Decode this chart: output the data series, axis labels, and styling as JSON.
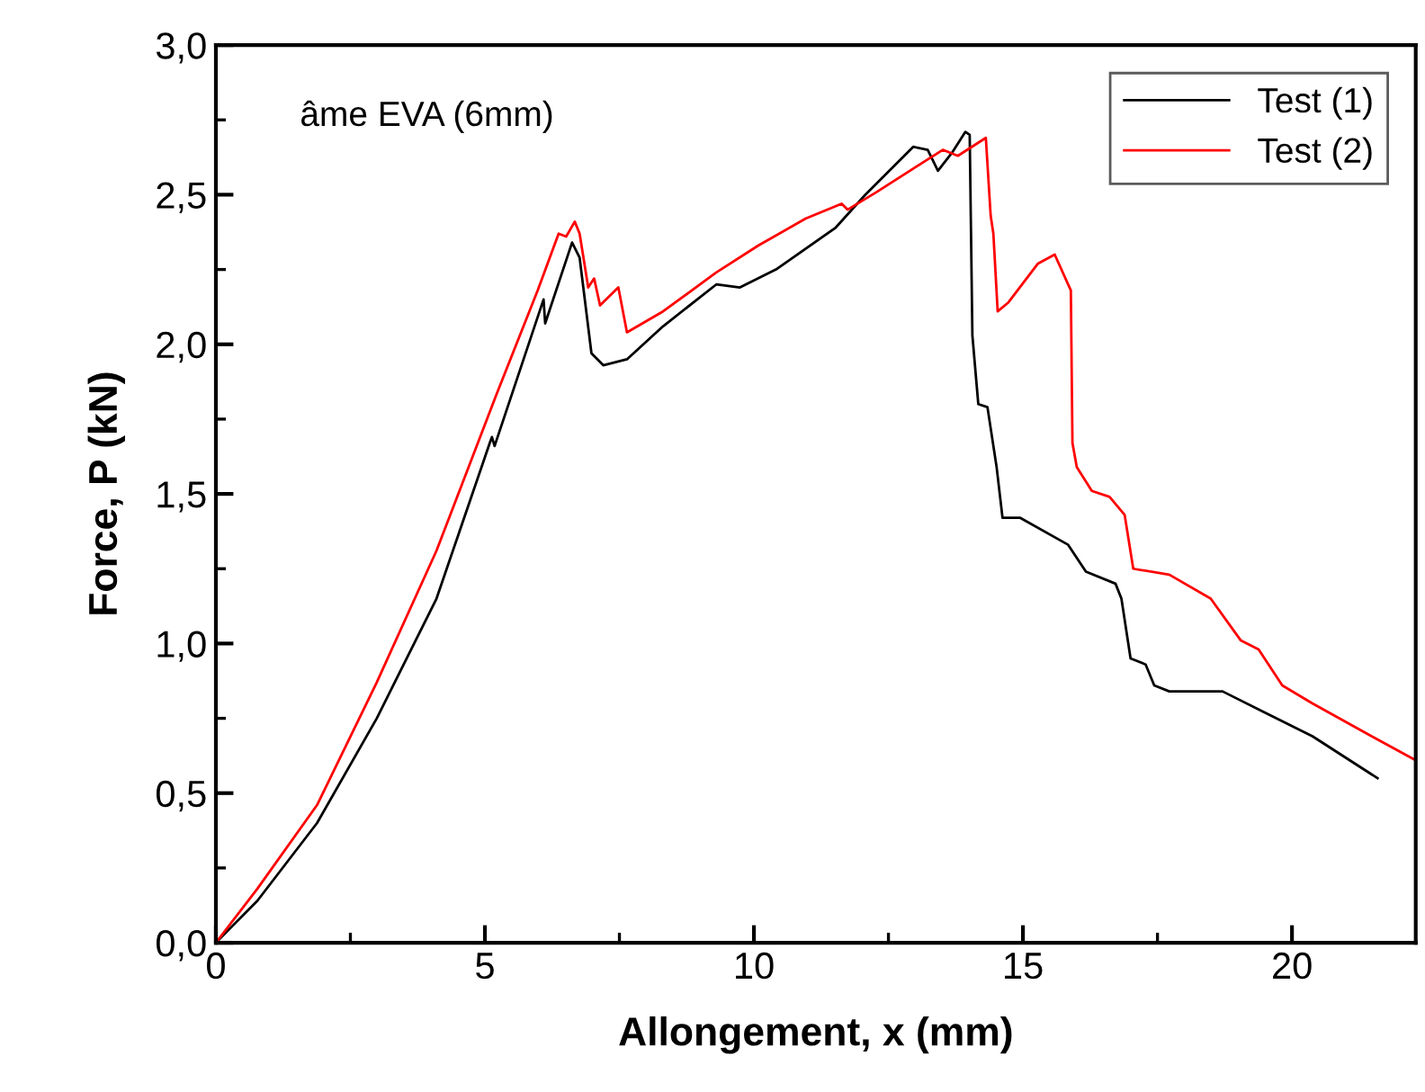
{
  "chart_data": {
    "type": "line",
    "xlabel": "Allongement, x (mm)",
    "ylabel": "Force, P (kN)",
    "annotations": [
      "âme EVA (6mm)"
    ],
    "xlim": [
      0,
      22.3
    ],
    "ylim": [
      0,
      3.0
    ],
    "xticks": [
      0,
      5,
      10,
      15,
      20
    ],
    "yticks": [
      {
        "value": 0,
        "label": "0,0"
      },
      {
        "value": 0.5,
        "label": "0,5"
      },
      {
        "value": 1.0,
        "label": "1,0"
      },
      {
        "value": 1.5,
        "label": "1,5"
      },
      {
        "value": 2.0,
        "label": "2,0"
      },
      {
        "value": 2.5,
        "label": "2,5"
      },
      {
        "value": 3.0,
        "label": "3,0"
      }
    ],
    "grid": false,
    "legend": "top right",
    "marker": "none",
    "line_style": "solid",
    "series": [
      {
        "name": "Test (1)",
        "color": "#000000",
        "x": [
          0,
          0.77,
          1.88,
          2.99,
          4.1,
          5.09,
          5.13,
          5.18,
          6.09,
          6.12,
          6.62,
          6.76,
          6.98,
          7.2,
          7.64,
          8.31,
          9.3,
          9.74,
          10.41,
          11.52,
          12.07,
          12.96,
          13.23,
          13.42,
          13.68,
          13.93,
          14.01,
          14.06,
          14.17,
          14.34,
          14.51,
          14.62,
          14.95,
          15.84,
          16.17,
          16.72,
          16.83,
          17.0,
          17.28,
          17.44,
          17.72,
          18.71,
          19.49,
          20.38,
          21.59
        ],
        "values": [
          0,
          0.14,
          0.4,
          0.75,
          1.15,
          1.67,
          1.69,
          1.66,
          2.15,
          2.07,
          2.34,
          2.29,
          1.97,
          1.93,
          1.95,
          2.06,
          2.2,
          2.19,
          2.25,
          2.39,
          2.5,
          2.66,
          2.65,
          2.58,
          2.64,
          2.71,
          2.7,
          2.03,
          1.8,
          1.79,
          1.59,
          1.42,
          1.42,
          1.33,
          1.24,
          1.2,
          1.15,
          0.95,
          0.93,
          0.86,
          0.84,
          0.84,
          0.77,
          0.69,
          0.55
        ]
      },
      {
        "name": "Test (2)",
        "color": "#ff0000",
        "x": [
          0,
          0.77,
          1.88,
          2.99,
          4.1,
          5.21,
          5.98,
          6.37,
          6.51,
          6.67,
          6.76,
          6.92,
          7.03,
          7.14,
          7.48,
          7.64,
          8.31,
          9.3,
          10.08,
          10.96,
          11.63,
          11.74,
          12.29,
          13.51,
          13.79,
          14.31,
          14.4,
          14.45,
          14.53,
          14.73,
          15.28,
          15.59,
          15.89,
          15.92,
          16.0,
          16.28,
          16.61,
          16.89,
          17.05,
          17.72,
          18.49,
          19.05,
          19.38,
          19.82,
          20.38,
          21.48,
          22.3
        ],
        "values": [
          0,
          0.18,
          0.46,
          0.87,
          1.31,
          1.83,
          2.18,
          2.37,
          2.36,
          2.41,
          2.37,
          2.19,
          2.22,
          2.13,
          2.19,
          2.04,
          2.11,
          2.24,
          2.33,
          2.42,
          2.47,
          2.45,
          2.51,
          2.65,
          2.63,
          2.69,
          2.43,
          2.37,
          2.11,
          2.14,
          2.27,
          2.3,
          2.18,
          1.67,
          1.59,
          1.51,
          1.49,
          1.43,
          1.25,
          1.23,
          1.15,
          1.01,
          0.98,
          0.86,
          0.8,
          0.69,
          0.61
        ]
      }
    ]
  }
}
